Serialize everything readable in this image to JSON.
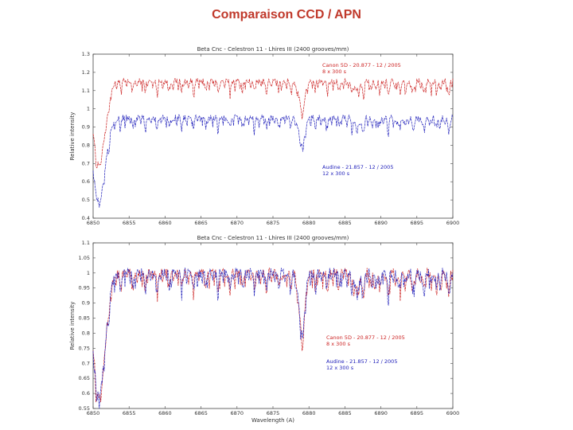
{
  "slide": {
    "title": "Comparaison CCD / APN"
  },
  "colors": {
    "canon": "#cc2222",
    "audine": "#2222bb",
    "title": "#c0392b"
  },
  "chart_data": [
    {
      "type": "line",
      "title": "Beta Cnc - Celestron 11 - Lhires III (2400 grooves/mm)",
      "xlabel": "",
      "ylabel": "Relative intensity",
      "xlim": [
        6850,
        6880
      ],
      "ylim": [
        0.4,
        1.3
      ],
      "xticks": [
        "6850",
        "6855",
        "6860",
        "6865",
        "6870",
        "6875",
        "6880",
        "6885",
        "6890",
        "6895",
        "6900"
      ],
      "yticks": [
        "0.4",
        "0.5",
        "0.6",
        "0.7",
        "0.8",
        "0.9",
        "1",
        "1.1",
        "1.2",
        "1.3"
      ],
      "legend_position": "right",
      "series": [
        {
          "name": "Canon 5D - 20.877 - 12 / 2005",
          "note": "8 x 300 s",
          "offset": 0.15,
          "color": "#cc2222"
        },
        {
          "name": "Audine - 21.857 - 12 / 2005",
          "note": "12 x 300 s",
          "offset": -0.05,
          "color": "#2222bb"
        }
      ],
      "lines": [
        {
          "center": 0.5,
          "depth": 0.45,
          "width": 0.7
        },
        {
          "center": 17.4,
          "depth": 0.14,
          "width": 0.35
        },
        {
          "center": 22.0,
          "depth": 0.05,
          "width": 0.3
        }
      ]
    },
    {
      "type": "line",
      "title": "Beta Cnc - Celestron 11 - Lhires III (2400 grooves/mm)",
      "xlabel": "Wavelength (A)",
      "ylabel": "Relative intensity",
      "xlim": [
        6850,
        6880
      ],
      "ylim": [
        0.55,
        1.1
      ],
      "xticks": [
        "6850",
        "6855",
        "6860",
        "6865",
        "6870",
        "6875",
        "6880",
        "6885",
        "6890",
        "6895",
        "6900"
      ],
      "yticks": [
        "0.55",
        "0.6",
        "0.65",
        "0.7",
        "0.75",
        "0.8",
        "0.85",
        "0.9",
        "0.95",
        "1",
        "1.05",
        "1.1"
      ],
      "legend_position": "bottom-right",
      "series": [
        {
          "name": "Canon 5D - 20.877 - 12 / 2005",
          "note": "8 x 300 s",
          "offset": 0,
          "color": "#cc2222"
        },
        {
          "name": "Audine - 21.857 - 12 / 2005",
          "note": "12 x 300 s",
          "offset": 0,
          "color": "#2222bb"
        }
      ],
      "lines": [
        {
          "center": 0.5,
          "depth": 0.4,
          "width": 0.7
        },
        {
          "center": 17.4,
          "depth": 0.19,
          "width": 0.35
        },
        {
          "center": 22.0,
          "depth": 0.06,
          "width": 0.3
        }
      ]
    }
  ]
}
